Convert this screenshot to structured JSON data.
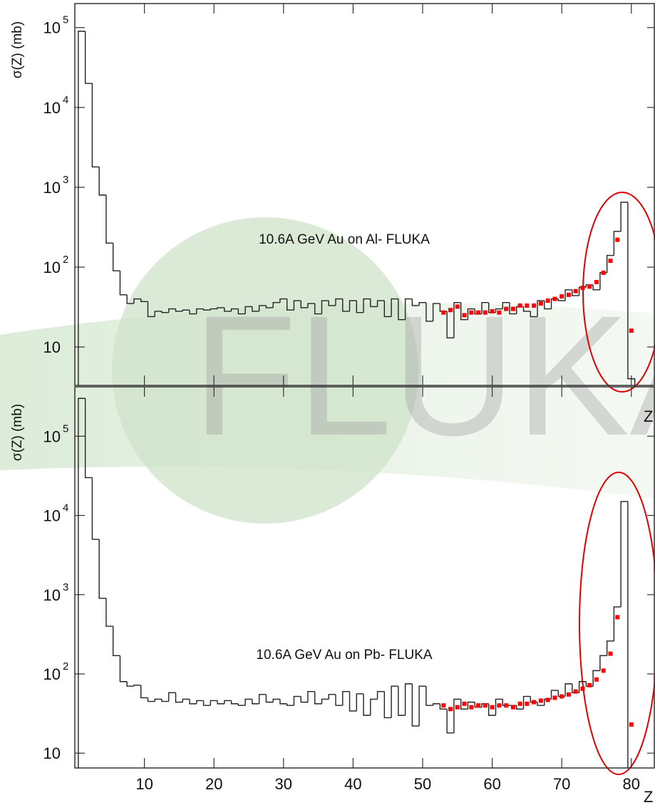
{
  "watermark": "FLUKA",
  "chart_data": [
    {
      "type": "histogram",
      "ylabel": "σ(Z) (mb)",
      "xlabel": "Z",
      "annotation": "10.6A GeV Au on Al- FLUKA",
      "log_y": true,
      "xlim": [
        0,
        83.3
      ],
      "ylim": [
        3.3,
        200000
      ],
      "xticks": [
        10,
        20,
        30,
        40,
        50,
        60,
        70,
        80
      ],
      "yticks": [
        10,
        {
          "value": 100,
          "label": "10",
          "exponent": "2"
        },
        {
          "value": 1000,
          "label": "10",
          "exponent": "3"
        },
        {
          "value": 10000,
          "label": "10",
          "exponent": "4"
        },
        {
          "value": 100000,
          "label": "10",
          "exponent": "5"
        }
      ],
      "color": "#222222",
      "bins": [
        0.5,
        1.5,
        2.5,
        3.5,
        4.5,
        5.5,
        6.5,
        7.5,
        8.5,
        9.5,
        10.5,
        11.5,
        12.5,
        13.5,
        14.5,
        15.5,
        16.5,
        17.5,
        18.5,
        19.5,
        20.5,
        21.5,
        22.5,
        23.5,
        24.5,
        25.5,
        26.5,
        27.5,
        28.5,
        29.5,
        30.5,
        31.5,
        32.5,
        33.5,
        34.5,
        35.5,
        36.5,
        37.5,
        38.5,
        39.5,
        40.5,
        41.5,
        42.5,
        43.5,
        44.5,
        45.5,
        46.5,
        47.5,
        48.5,
        49.5,
        50.5,
        51.5,
        52.5,
        53.5,
        54.5,
        55.5,
        56.5,
        57.5,
        58.5,
        59.5,
        60.5,
        61.5,
        62.5,
        63.5,
        64.5,
        65.5,
        66.5,
        67.5,
        68.5,
        69.5,
        70.5,
        71.5,
        72.5,
        73.5,
        74.5,
        75.5,
        76.5,
        77.5,
        78.5,
        79.5,
        80.5
      ],
      "values": [
        90000,
        20000,
        1800,
        800,
        200,
        90,
        45,
        35,
        40,
        37,
        24,
        28,
        27,
        30,
        28,
        29,
        26,
        30,
        29,
        30,
        31,
        28,
        30,
        26,
        32,
        28,
        33,
        31,
        36,
        40,
        29,
        38,
        31,
        35,
        26,
        38,
        33,
        40,
        28,
        38,
        27,
        40,
        32,
        38,
        24,
        40,
        22,
        40,
        33,
        36,
        21,
        35,
        28,
        13,
        36,
        22,
        30,
        26,
        36,
        27,
        30,
        36,
        26,
        32,
        28,
        24,
        38,
        30,
        40,
        38,
        52,
        44,
        56,
        60,
        52,
        85,
        140,
        280,
        650,
        4
      ],
      "points": {
        "color": "#ff0000",
        "x": [
          53,
          54,
          55,
          56,
          57,
          58,
          59,
          60,
          61,
          62,
          63,
          64,
          65,
          66,
          67,
          68,
          69,
          70,
          71,
          72,
          73,
          74,
          75,
          76,
          77,
          78,
          80
        ],
        "y": [
          27,
          29,
          32,
          25,
          27,
          27,
          27,
          28,
          27,
          30,
          30,
          33,
          33,
          33,
          35,
          38,
          40,
          43,
          45,
          50,
          55,
          57,
          65,
          85,
          120,
          220,
          16
        ]
      }
    },
    {
      "type": "histogram",
      "ylabel": "σ(Z) (mb)",
      "xlabel": "Z",
      "annotation": "10.6A GeV Au on Pb- FLUKA",
      "log_y": true,
      "xlim": [
        0,
        83.3
      ],
      "ylim": [
        6.5,
        420000
      ],
      "xticks": [
        10,
        20,
        30,
        40,
        50,
        60,
        70,
        80
      ],
      "yticks": [
        10,
        {
          "value": 100,
          "label": "10",
          "exponent": "2"
        },
        {
          "value": 1000,
          "label": "10",
          "exponent": "3"
        },
        {
          "value": 10000,
          "label": "10",
          "exponent": "4"
        },
        {
          "value": 100000,
          "label": "10",
          "exponent": "5"
        }
      ],
      "color": "#222222",
      "bins": [
        0.5,
        1.5,
        2.5,
        3.5,
        4.5,
        5.5,
        6.5,
        7.5,
        8.5,
        9.5,
        10.5,
        11.5,
        12.5,
        13.5,
        14.5,
        15.5,
        16.5,
        17.5,
        18.5,
        19.5,
        20.5,
        21.5,
        22.5,
        23.5,
        24.5,
        25.5,
        26.5,
        27.5,
        28.5,
        29.5,
        30.5,
        31.5,
        32.5,
        33.5,
        34.5,
        35.5,
        36.5,
        37.5,
        38.5,
        39.5,
        40.5,
        41.5,
        42.5,
        43.5,
        44.5,
        45.5,
        46.5,
        47.5,
        48.5,
        49.5,
        50.5,
        51.5,
        52.5,
        53.5,
        54.5,
        55.5,
        56.5,
        57.5,
        58.5,
        59.5,
        60.5,
        61.5,
        62.5,
        63.5,
        64.5,
        65.5,
        66.5,
        67.5,
        68.5,
        69.5,
        70.5,
        71.5,
        72.5,
        73.5,
        74.5,
        75.5,
        76.5,
        77.5,
        78.5,
        79.5,
        80.5
      ],
      "values": [
        300000,
        30000,
        5000,
        900,
        400,
        170,
        80,
        70,
        72,
        50,
        45,
        48,
        45,
        58,
        44,
        48,
        42,
        46,
        40,
        46,
        42,
        46,
        42,
        40,
        48,
        42,
        55,
        44,
        48,
        42,
        40,
        52,
        44,
        60,
        42,
        48,
        55,
        40,
        60,
        34,
        56,
        30,
        48,
        60,
        28,
        70,
        30,
        75,
        22,
        70,
        40,
        42,
        36,
        18,
        48,
        36,
        44,
        38,
        42,
        30,
        48,
        40,
        40,
        36,
        52,
        44,
        40,
        48,
        62,
        52,
        75,
        58,
        80,
        70,
        110,
        170,
        260,
        700,
        15000,
        6
      ],
      "points": {
        "color": "#ff0000",
        "x": [
          53,
          54,
          55,
          56,
          57,
          58,
          59,
          60,
          61,
          62,
          63,
          64,
          65,
          66,
          67,
          68,
          69,
          70,
          71,
          72,
          73,
          74,
          75,
          76,
          77,
          78,
          80
        ],
        "y": [
          40,
          36,
          38,
          42,
          38,
          40,
          40,
          38,
          40,
          40,
          38,
          42,
          42,
          44,
          46,
          47,
          50,
          52,
          55,
          60,
          65,
          72,
          85,
          110,
          180,
          520,
          23
        ]
      }
    }
  ]
}
